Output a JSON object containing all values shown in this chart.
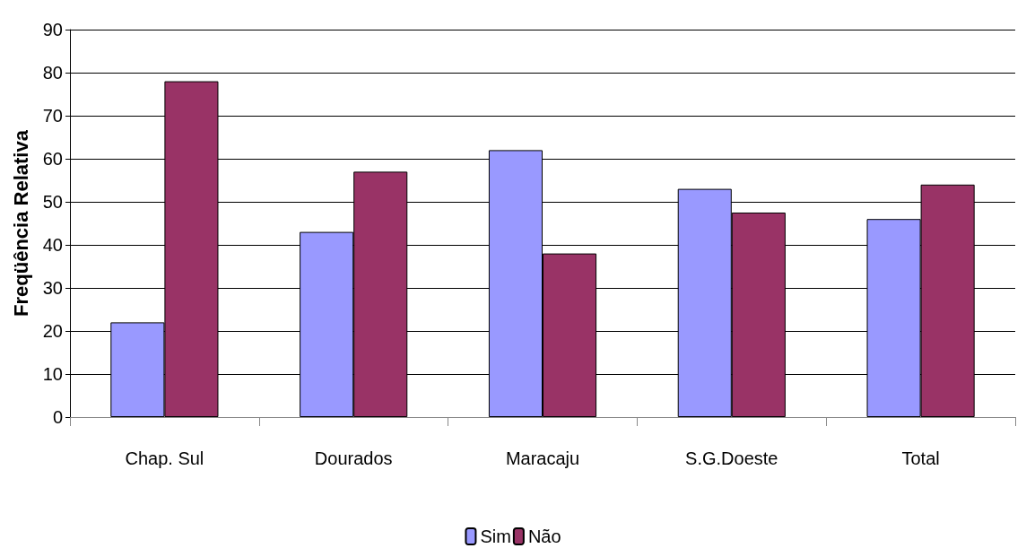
{
  "chart_data": {
    "type": "bar",
    "ylabel": "Freqüência Relativa",
    "categories": [
      "Chap. Sul",
      "Dourados",
      "Maracaju",
      "S.G.Doeste",
      "Total"
    ],
    "series": [
      {
        "name": "Sim",
        "color": "#9999ff",
        "values": [
          22,
          43,
          62,
          53,
          46
        ]
      },
      {
        "name": "Não",
        "color": "#993366",
        "values": [
          78,
          57,
          38,
          47.5,
          54
        ]
      }
    ],
    "ylim": [
      0,
      90
    ],
    "yticks": [
      0,
      10,
      20,
      30,
      40,
      50,
      60,
      70,
      80,
      90
    ],
    "grid": "y",
    "legend": "bottom"
  }
}
